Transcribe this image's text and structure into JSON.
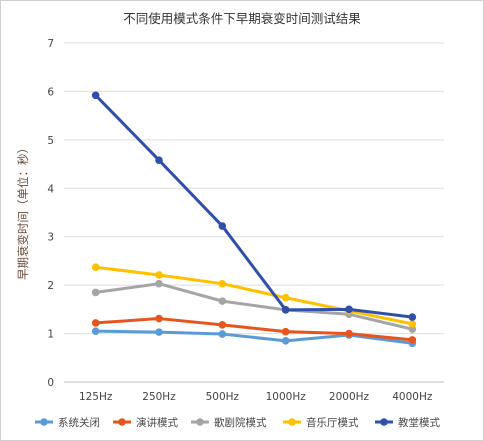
{
  "chart_data": {
    "type": "line",
    "title": "不同使用模式条件下早期衰变时间测试结果",
    "xlabel": "",
    "ylabel": "早期衰变时间（单位：秒）",
    "categories": [
      "125Hz",
      "250Hz",
      "500Hz",
      "1000Hz",
      "2000Hz",
      "4000Hz"
    ],
    "ylim": [
      0,
      7
    ],
    "yticks": [
      0,
      1,
      2,
      3,
      4,
      5,
      6,
      7
    ],
    "grid": true,
    "legend_position": "bottom",
    "series": [
      {
        "name": "系统关闭",
        "color": "#5b9bd5",
        "values": [
          1.05,
          1.03,
          0.99,
          0.85,
          0.97,
          0.8
        ]
      },
      {
        "name": "演讲模式",
        "color": "#e8541e",
        "values": [
          1.22,
          1.31,
          1.18,
          1.04,
          1.0,
          0.87
        ]
      },
      {
        "name": "歌剧院模式",
        "color": "#a5a5a5",
        "values": [
          1.85,
          2.03,
          1.67,
          1.49,
          1.4,
          1.09
        ]
      },
      {
        "name": "音乐厅模式",
        "color": "#ffc000",
        "values": [
          2.37,
          2.21,
          2.03,
          1.74,
          1.47,
          1.2
        ]
      },
      {
        "name": "教堂模式",
        "color": "#2f4fa8",
        "values": [
          5.92,
          4.58,
          3.22,
          1.49,
          1.5,
          1.34
        ]
      }
    ]
  }
}
